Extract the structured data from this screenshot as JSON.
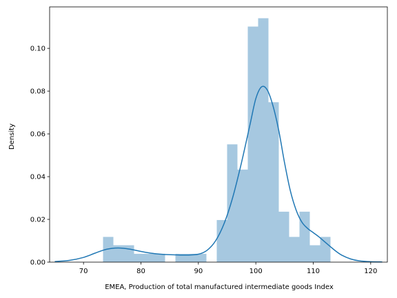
{
  "chart_data": {
    "type": "histogram",
    "xlabel": "EMEA, Production of total manufactured intermediate goods Index",
    "ylabel": "Density",
    "xlim": [
      64.1,
      122.9
    ],
    "ylim": [
      0,
      0.1194
    ],
    "xticks": [
      70,
      80,
      90,
      100,
      110,
      120
    ],
    "yticks": [
      0.0,
      0.02,
      0.04,
      0.06,
      0.08,
      0.1
    ],
    "ytick_labels": [
      "0.00",
      "0.02",
      "0.04",
      "0.06",
      "0.08",
      "0.10"
    ],
    "grid": false,
    "bar_color": "#a6c8e0",
    "line_color": "#1f77b4",
    "histogram": {
      "bins": [
        {
          "x0": 73.4,
          "x1": 75.2,
          "density": 0.0118
        },
        {
          "x0": 75.2,
          "x1": 77.0,
          "density": 0.0079
        },
        {
          "x0": 77.0,
          "x1": 78.8,
          "density": 0.0079
        },
        {
          "x0": 78.8,
          "x1": 80.6,
          "density": 0.0039
        },
        {
          "x0": 80.6,
          "x1": 82.4,
          "density": 0.0039
        },
        {
          "x0": 82.4,
          "x1": 84.2,
          "density": 0.0039
        },
        {
          "x0": 84.2,
          "x1": 86.0,
          "density": 0.0
        },
        {
          "x0": 86.0,
          "x1": 87.8,
          "density": 0.0039
        },
        {
          "x0": 87.8,
          "x1": 89.6,
          "density": 0.0039
        },
        {
          "x0": 89.6,
          "x1": 91.4,
          "density": 0.0039
        },
        {
          "x0": 91.4,
          "x1": 93.2,
          "density": 0.0
        },
        {
          "x0": 93.2,
          "x1": 95.0,
          "density": 0.0197
        },
        {
          "x0": 95.0,
          "x1": 96.8,
          "density": 0.0551
        },
        {
          "x0": 96.8,
          "x1": 98.6,
          "density": 0.0433
        },
        {
          "x0": 98.6,
          "x1": 100.4,
          "density": 0.1102
        },
        {
          "x0": 100.4,
          "x1": 102.2,
          "density": 0.1141
        },
        {
          "x0": 102.2,
          "x1": 104.0,
          "density": 0.0748
        },
        {
          "x0": 104.0,
          "x1": 105.8,
          "density": 0.0236
        },
        {
          "x0": 105.8,
          "x1": 107.6,
          "density": 0.0118
        },
        {
          "x0": 107.6,
          "x1": 109.4,
          "density": 0.0236
        },
        {
          "x0": 109.4,
          "x1": 111.2,
          "density": 0.0079
        },
        {
          "x0": 111.2,
          "x1": 113.0,
          "density": 0.0118
        }
      ]
    },
    "kde": {
      "x": [
        65.0,
        67.5,
        70.0,
        72.0,
        74.0,
        76.0,
        78.0,
        80.0,
        82.0,
        84.0,
        86.0,
        88.0,
        90.0,
        91.5,
        93.0,
        94.5,
        96.0,
        97.5,
        99.0,
        100.0,
        101.0,
        102.0,
        103.0,
        104.0,
        105.0,
        106.0,
        107.0,
        108.0,
        109.0,
        110.0,
        111.0,
        112.0,
        113.0,
        114.0,
        115.0,
        116.5,
        118.0,
        120.0,
        122.0
      ],
      "y": [
        0.0003,
        0.0008,
        0.0022,
        0.0042,
        0.006,
        0.0066,
        0.0061,
        0.005,
        0.0041,
        0.0036,
        0.0034,
        0.0033,
        0.0037,
        0.0055,
        0.01,
        0.0182,
        0.0305,
        0.0465,
        0.0645,
        0.0765,
        0.082,
        0.0805,
        0.073,
        0.0615,
        0.0465,
        0.0335,
        0.0245,
        0.0188,
        0.0158,
        0.0138,
        0.0118,
        0.0095,
        0.0072,
        0.005,
        0.0032,
        0.0015,
        0.0006,
        0.0002,
        0.0001
      ]
    }
  }
}
